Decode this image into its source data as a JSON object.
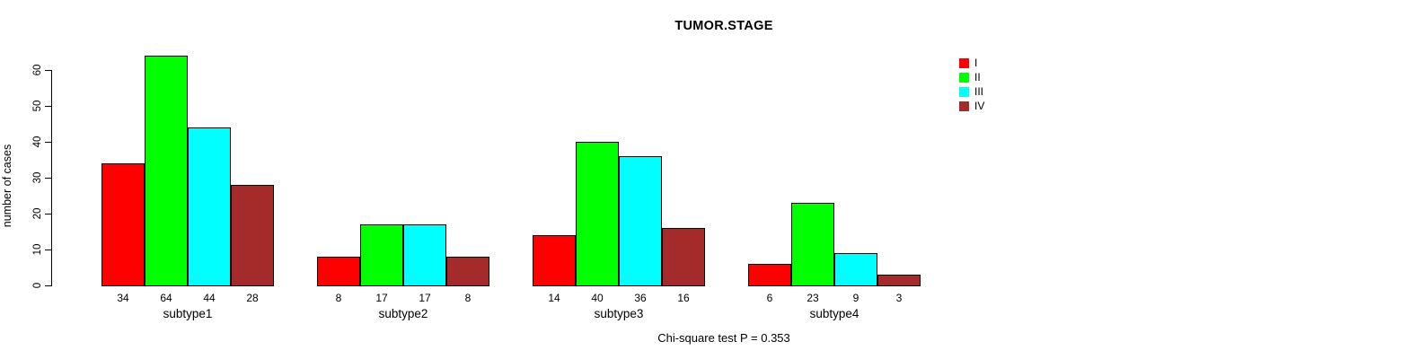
{
  "chart_data": {
    "type": "bar",
    "title": "TUMOR.STAGE",
    "ylabel": "number of cases",
    "caption": "Chi-square test P = 0.353",
    "categories": [
      "subtype1",
      "subtype2",
      "subtype3",
      "subtype4"
    ],
    "series": [
      {
        "name": "I",
        "color": "#FF0000",
        "values": [
          34,
          8,
          14,
          6
        ]
      },
      {
        "name": "II",
        "color": "#00FF00",
        "values": [
          64,
          17,
          40,
          23
        ]
      },
      {
        "name": "III",
        "color": "#00FFFF",
        "values": [
          44,
          17,
          36,
          9
        ]
      },
      {
        "name": "IV",
        "color": "#A52A2A",
        "values": [
          28,
          8,
          16,
          3
        ]
      }
    ],
    "value_labels_shown": true,
    "yticks": [
      0,
      10,
      20,
      30,
      40,
      50,
      60
    ],
    "ylim": [
      0,
      64
    ],
    "grid": false,
    "legend_position": "top-right",
    "background_color": "#FFFFFF"
  }
}
